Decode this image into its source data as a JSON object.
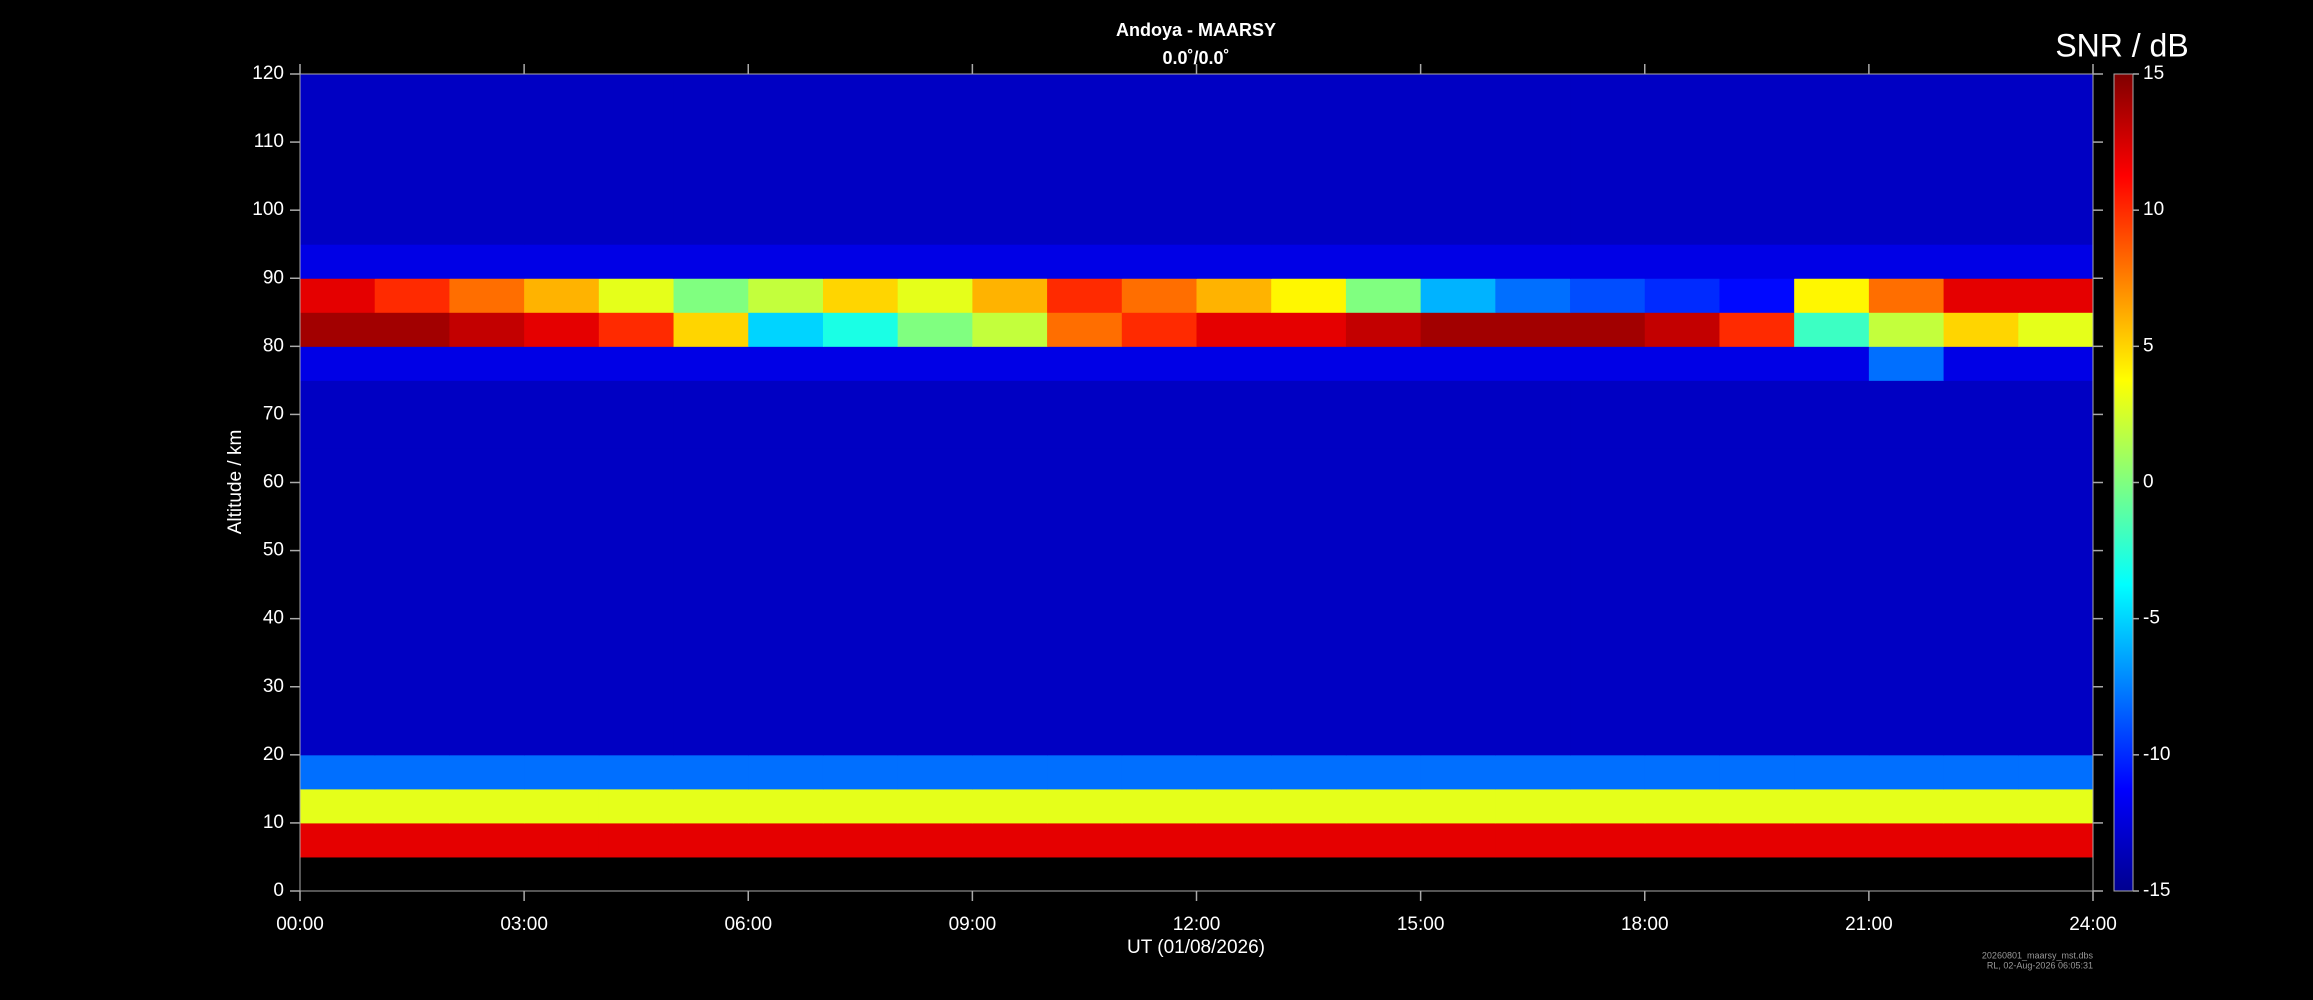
{
  "chart_data": {
    "type": "heatmap",
    "title": "Andoya - MAARSY",
    "subtitle": "0.0˚/0.0˚",
    "x_label": "UT (01/08/2026)",
    "y_label": "Altitude / km",
    "colorbar_label": "SNR / dB",
    "colormap": "jet",
    "footnote": [
      "20260801_maarsy_mst.dbs",
      "RL, 02-Aug-2026 06:05:31"
    ],
    "xlim": [
      0,
      24
    ],
    "xticks": [
      {
        "value": 0,
        "label": "00:00"
      },
      {
        "value": 3,
        "label": "03:00"
      },
      {
        "value": 6,
        "label": "06:00"
      },
      {
        "value": 9,
        "label": "09:00"
      },
      {
        "value": 12,
        "label": "12:00"
      },
      {
        "value": 15,
        "label": "15:00"
      },
      {
        "value": 18,
        "label": "18:00"
      },
      {
        "value": 21,
        "label": "21:00"
      },
      {
        "value": 24,
        "label": "24:00"
      }
    ],
    "ylim": [
      0,
      120
    ],
    "yticks": [
      0,
      10,
      20,
      30,
      40,
      50,
      60,
      70,
      80,
      90,
      100,
      110,
      120
    ],
    "zlim": [
      -15,
      15
    ],
    "zticks": [
      -15,
      -10,
      -5,
      0,
      5,
      10,
      15
    ],
    "xbins": [
      0,
      1,
      2,
      3,
      4,
      5,
      6,
      7,
      8,
      9,
      10,
      11,
      12,
      13,
      14,
      15,
      16,
      17,
      18,
      19,
      20,
      21,
      22,
      23,
      24
    ],
    "ybins": [
      0,
      5,
      10,
      15,
      20,
      25,
      30,
      35,
      40,
      45,
      50,
      55,
      60,
      65,
      70,
      75,
      80,
      85,
      90,
      95,
      100,
      105,
      110,
      115,
      120
    ],
    "z": [
      [
        null,
        null,
        null,
        null,
        null,
        null,
        null,
        null,
        null,
        null,
        null,
        null,
        null,
        null,
        null,
        null,
        null,
        null,
        null,
        null,
        null,
        null,
        null,
        null
      ],
      [
        12,
        12,
        12,
        12,
        12,
        12,
        12,
        12,
        12,
        12,
        12,
        12,
        12,
        12,
        12,
        12,
        12,
        12,
        12,
        12,
        12,
        12,
        12,
        12
      ],
      [
        3,
        3,
        3,
        3,
        3,
        3,
        3,
        3,
        3,
        3,
        3,
        3,
        3,
        3,
        3,
        3,
        3,
        3,
        3,
        3,
        3,
        3,
        3,
        3
      ],
      [
        -8,
        -8,
        -8,
        -8,
        -8,
        -8,
        -8,
        -8,
        -8,
        -8,
        -8,
        -8,
        -8,
        -8,
        -8,
        -8,
        -8,
        -8,
        -8,
        -8,
        -8,
        -8,
        -8,
        -8
      ],
      [
        -13,
        -13,
        -13,
        -13,
        -13,
        -13,
        -13,
        -13,
        -13,
        -13,
        -13,
        -13,
        -13,
        -13,
        -13,
        -13,
        -13,
        -13,
        -13,
        -13,
        -13,
        -13,
        -13,
        -13
      ],
      [
        -13,
        -13,
        -13,
        -13,
        -13,
        -13,
        -13,
        -13,
        -13,
        -13,
        -13,
        -13,
        -13,
        -13,
        -13,
        -13,
        -13,
        -13,
        -13,
        -13,
        -13,
        -13,
        -13,
        -13
      ],
      [
        -13,
        -13,
        -13,
        -13,
        -13,
        -13,
        -13,
        -13,
        -13,
        -13,
        -13,
        -13,
        -13,
        -13,
        -13,
        -13,
        -13,
        -13,
        -13,
        -13,
        -13,
        -13,
        -13,
        -13
      ],
      [
        -13,
        -13,
        -13,
        -13,
        -13,
        -13,
        -13,
        -13,
        -13,
        -13,
        -13,
        -13,
        -13,
        -13,
        -13,
        -13,
        -13,
        -13,
        -13,
        -13,
        -13,
        -13,
        -13,
        -13
      ],
      [
        -13,
        -13,
        -13,
        -13,
        -13,
        -13,
        -13,
        -13,
        -13,
        -13,
        -13,
        -13,
        -13,
        -13,
        -13,
        -13,
        -13,
        -13,
        -13,
        -13,
        -13,
        -13,
        -13,
        -13
      ],
      [
        -13,
        -13,
        -13,
        -13,
        -13,
        -13,
        -13,
        -13,
        -13,
        -13,
        -13,
        -13,
        -13,
        -13,
        -13,
        -13,
        -13,
        -13,
        -13,
        -13,
        -13,
        -13,
        -13,
        -13
      ],
      [
        -13,
        -13,
        -13,
        -13,
        -13,
        -13,
        -13,
        -13,
        -13,
        -13,
        -13,
        -13,
        -13,
        -13,
        -13,
        -13,
        -13,
        -13,
        -13,
        -13,
        -13,
        -13,
        -13,
        -13
      ],
      [
        -13,
        -13,
        -13,
        -13,
        -13,
        -13,
        -13,
        -13,
        -13,
        -13,
        -13,
        -13,
        -13,
        -13,
        -13,
        -13,
        -13,
        -13,
        -13,
        -13,
        -13,
        -13,
        -13,
        -13
      ],
      [
        -13,
        -13,
        -13,
        -13,
        -13,
        -13,
        -13,
        -13,
        -13,
        -13,
        -13,
        -13,
        -13,
        -13,
        -13,
        -13,
        -13,
        -13,
        -13,
        -13,
        -13,
        -13,
        -13,
        -13
      ],
      [
        -13,
        -13,
        -13,
        -13,
        -13,
        -13,
        -13,
        -13,
        -13,
        -13,
        -13,
        -13,
        -13,
        -13,
        -13,
        -13,
        -13,
        -13,
        -13,
        -13,
        -13,
        -13,
        -13,
        -13
      ],
      [
        -13,
        -13,
        -13,
        -13,
        -13,
        -13,
        -13,
        -13,
        -13,
        -13,
        -13,
        -13,
        -13,
        -13,
        -13,
        -13,
        -13,
        -13,
        -13,
        -13,
        -13,
        -13,
        -13,
        -13
      ],
      [
        -12,
        -12,
        -12,
        -12,
        -12,
        -12,
        -12,
        -12,
        -12,
        -12,
        -12,
        -12,
        -12,
        -12,
        -12,
        -12,
        -12,
        -12,
        -12,
        -12,
        -12,
        -8,
        -12,
        -12
      ],
      [
        14,
        14,
        13,
        12,
        10,
        5,
        -5,
        -3,
        0,
        2,
        8,
        10,
        12,
        12,
        13,
        14,
        14,
        14,
        13,
        10,
        -2,
        2,
        5,
        3
      ],
      [
        12,
        10,
        8,
        6,
        3,
        0,
        2,
        5,
        3,
        6,
        10,
        8,
        6,
        4,
        0,
        -6,
        -8,
        -9,
        -10,
        -11,
        4,
        8,
        12,
        12
      ],
      [
        -12,
        -12,
        -12,
        -12,
        -12,
        -12,
        -12,
        -12,
        -12,
        -12,
        -12,
        -12,
        -12,
        -12,
        -12,
        -12,
        -12,
        -12,
        -12,
        -12,
        -12,
        -12,
        -12,
        -12
      ],
      [
        -13,
        -13,
        -13,
        -13,
        -13,
        -13,
        -13,
        -13,
        -13,
        -13,
        -13,
        -13,
        -13,
        -13,
        -13,
        -13,
        -13,
        -13,
        -13,
        -13,
        -13,
        -13,
        -13,
        -13
      ],
      [
        -13,
        -13,
        -13,
        -13,
        -13,
        -13,
        -13,
        -13,
        -13,
        -13,
        -13,
        -13,
        -13,
        -13,
        -13,
        -13,
        -13,
        -13,
        -13,
        -13,
        -13,
        -13,
        -13,
        -13
      ],
      [
        -13,
        -13,
        -13,
        -13,
        -13,
        -13,
        -13,
        -13,
        -13,
        -13,
        -13,
        -13,
        -13,
        -13,
        -13,
        -13,
        -13,
        -13,
        -13,
        -13,
        -13,
        -13,
        -13,
        -13
      ],
      [
        -13,
        -13,
        -13,
        -13,
        -13,
        -13,
        -13,
        -13,
        -13,
        -13,
        -13,
        -13,
        -13,
        -13,
        -13,
        -13,
        -13,
        -13,
        -13,
        -13,
        -13,
        -13,
        -13,
        -13
      ],
      [
        -13,
        -13,
        -13,
        -13,
        -13,
        -13,
        -13,
        -13,
        -13,
        -13,
        -13,
        -13,
        -13,
        -13,
        -13,
        -13,
        -13,
        -13,
        -13,
        -13,
        -13,
        -13,
        -13,
        -13
      ]
    ]
  }
}
